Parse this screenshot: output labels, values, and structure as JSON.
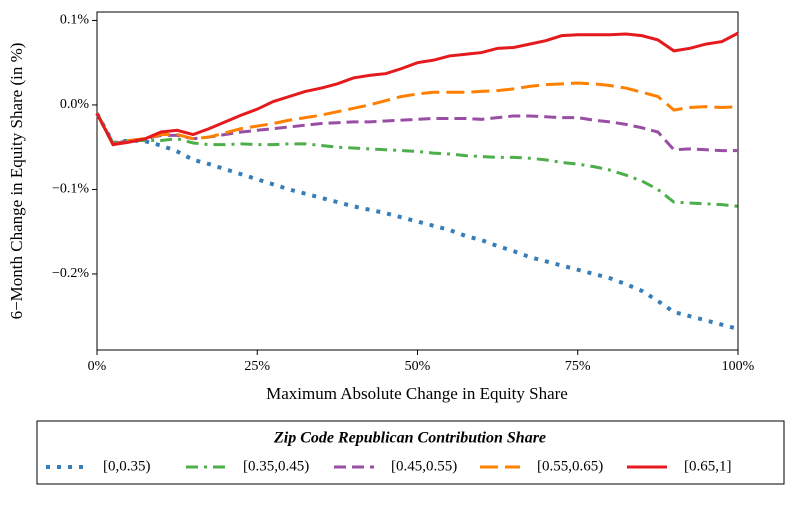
{
  "chart_data": {
    "type": "line",
    "xlabel": "Maximum Absolute Change in Equity Share",
    "ylabel": "6−Month Change in Equity Share (in %)",
    "legend_title": "Zip Code Republican Contribution Share",
    "legend": "bottom",
    "xlim": [
      0,
      100
    ],
    "xticks": [
      {
        "value": 0,
        "label": "0%"
      },
      {
        "value": 25,
        "label": "25%"
      },
      {
        "value": 50,
        "label": "50%"
      },
      {
        "value": 75,
        "label": "75%"
      },
      {
        "value": 100,
        "label": "100%"
      }
    ],
    "ylim": [
      -0.29,
      0.11
    ],
    "yticks": [
      {
        "value": -0.2,
        "label": "−0.2%"
      },
      {
        "value": -0.1,
        "label": "−0.1%"
      },
      {
        "value": 0,
        "label": "0.0%"
      },
      {
        "value": 0.1,
        "label": "0.1%"
      }
    ],
    "x": [
      0,
      2.5,
      5,
      7.5,
      10,
      12.5,
      15,
      17.5,
      20,
      22.5,
      25,
      27.5,
      30,
      32.5,
      35,
      37.5,
      40,
      42.5,
      45,
      47.5,
      50,
      52.5,
      55,
      57.5,
      60,
      62.5,
      65,
      67.5,
      70,
      72.5,
      75,
      77.5,
      80,
      82.5,
      85,
      87.5,
      90,
      92.5,
      95,
      97.5,
      100
    ],
    "series": [
      {
        "name": "[0,0.35)",
        "color": "#377eb8",
        "linestyle": "dotted",
        "values": [
          -0.01,
          -0.045,
          -0.042,
          -0.043,
          -0.048,
          -0.055,
          -0.065,
          -0.07,
          -0.076,
          -0.082,
          -0.088,
          -0.094,
          -0.1,
          -0.105,
          -0.11,
          -0.115,
          -0.12,
          -0.124,
          -0.128,
          -0.133,
          -0.138,
          -0.143,
          -0.148,
          -0.155,
          -0.16,
          -0.167,
          -0.173,
          -0.18,
          -0.185,
          -0.19,
          -0.195,
          -0.2,
          -0.205,
          -0.212,
          -0.22,
          -0.232,
          -0.245,
          -0.25,
          -0.255,
          -0.26,
          -0.265
        ]
      },
      {
        "name": "[0.35,0.45)",
        "color": "#4daf4a",
        "linestyle": "dashdot",
        "values": [
          -0.01,
          -0.045,
          -0.042,
          -0.042,
          -0.042,
          -0.04,
          -0.045,
          -0.047,
          -0.047,
          -0.046,
          -0.047,
          -0.047,
          -0.046,
          -0.046,
          -0.048,
          -0.05,
          -0.051,
          -0.052,
          -0.053,
          -0.054,
          -0.055,
          -0.057,
          -0.058,
          -0.06,
          -0.061,
          -0.062,
          -0.062,
          -0.063,
          -0.065,
          -0.068,
          -0.07,
          -0.073,
          -0.077,
          -0.083,
          -0.09,
          -0.1,
          -0.115,
          -0.116,
          -0.117,
          -0.118,
          -0.12
        ]
      },
      {
        "name": "[0.45,0.55)",
        "color": "#984ea3",
        "linestyle": "dashed",
        "values": [
          -0.01,
          -0.046,
          -0.042,
          -0.04,
          -0.036,
          -0.036,
          -0.04,
          -0.038,
          -0.035,
          -0.032,
          -0.03,
          -0.028,
          -0.026,
          -0.024,
          -0.022,
          -0.021,
          -0.02,
          -0.02,
          -0.019,
          -0.018,
          -0.017,
          -0.016,
          -0.016,
          -0.016,
          -0.017,
          -0.015,
          -0.013,
          -0.013,
          -0.014,
          -0.015,
          -0.015,
          -0.018,
          -0.02,
          -0.023,
          -0.027,
          -0.032,
          -0.053,
          -0.052,
          -0.053,
          -0.054,
          -0.054
        ]
      },
      {
        "name": "[0.55,0.65)",
        "color": "#ff7f00",
        "linestyle": "longdash",
        "values": [
          -0.01,
          -0.047,
          -0.042,
          -0.04,
          -0.035,
          -0.035,
          -0.04,
          -0.038,
          -0.033,
          -0.028,
          -0.025,
          -0.022,
          -0.018,
          -0.015,
          -0.012,
          -0.008,
          -0.004,
          0,
          0.005,
          0.01,
          0.013,
          0.015,
          0.015,
          0.015,
          0.016,
          0.017,
          0.019,
          0.022,
          0.024,
          0.025,
          0.026,
          0.025,
          0.023,
          0.02,
          0.015,
          0.01,
          -0.006,
          -0.003,
          -0.002,
          -0.003,
          -0.002
        ]
      },
      {
        "name": "[0.65,1]",
        "color": "#e41a1c",
        "linestyle": "solid",
        "values": [
          -0.01,
          -0.047,
          -0.044,
          -0.04,
          -0.032,
          -0.03,
          -0.035,
          -0.028,
          -0.02,
          -0.012,
          -0.005,
          0.004,
          0.01,
          0.016,
          0.02,
          0.025,
          0.032,
          0.035,
          0.037,
          0.043,
          0.05,
          0.053,
          0.058,
          0.06,
          0.062,
          0.067,
          0.068,
          0.072,
          0.076,
          0.082,
          0.083,
          0.083,
          0.083,
          0.084,
          0.082,
          0.077,
          0.064,
          0.067,
          0.072,
          0.075,
          0.085
        ]
      }
    ]
  }
}
